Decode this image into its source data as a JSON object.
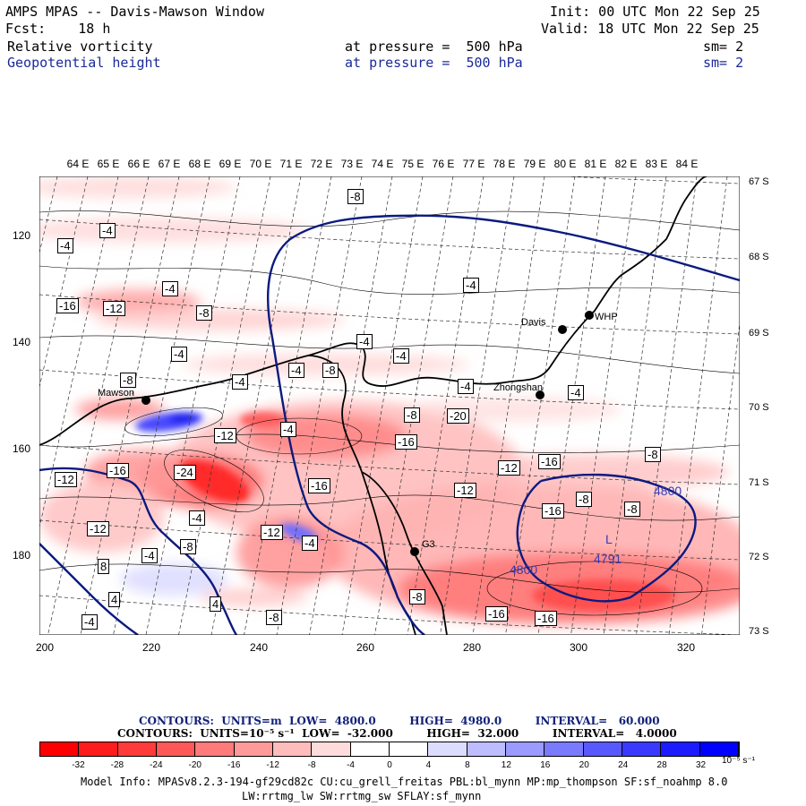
{
  "header": {
    "title": "AMPS MPAS -- Davis-Mawson Window",
    "forecast": "Fcst:    18 h",
    "init": "Init: 00 UTC Mon 22 Sep 25",
    "valid": "Valid: 18 UTC Mon 22 Sep 25",
    "field1": {
      "name": "Relative vorticity",
      "level": "at pressure =  500 hPa",
      "smooth": "sm= 2"
    },
    "field2": {
      "name": "Geopotential height",
      "level": "at pressure =  500 hPa",
      "smooth": "sm= 2"
    }
  },
  "map": {
    "lon_labels": [
      "64 E",
      "65 E",
      "66 E",
      "67 E",
      "68 E",
      "69 E",
      "70 E",
      "71 E",
      "72 E",
      "73 E",
      "74 E",
      "75 E",
      "76 E",
      "77 E",
      "78 E",
      "79 E",
      "80 E",
      "81 E",
      "82 E",
      "83 E",
      "84 E"
    ],
    "lat_labels": [
      "67 S",
      "68 S",
      "69 S",
      "70 S",
      "71 S",
      "72 S",
      "73 S"
    ],
    "x_ticks": [
      "200",
      "220",
      "240",
      "260",
      "280",
      "300",
      "320"
    ],
    "y_ticks": [
      "120",
      "140",
      "160",
      "180"
    ],
    "stations": [
      "Davis",
      "WHP",
      "Mawson",
      "Zhongshan",
      "G3"
    ],
    "contour_labels": [
      "-8",
      "-4",
      "-4",
      "-4",
      "-16",
      "-12",
      "-4",
      "-8",
      "-4",
      "-4",
      "-4",
      "-4",
      "-8",
      "-8",
      "-4",
      "-4",
      "-4",
      "-20",
      "-8",
      "-4",
      "-16",
      "-12",
      "-24",
      "-16",
      "-12",
      "-16",
      "-12",
      "-16",
      "-8",
      "-12",
      "-8",
      "-4",
      "-12",
      "-8",
      "-4",
      "8",
      "-12",
      "-16",
      "4",
      "-8",
      "4",
      "-8",
      "-16",
      "-16",
      "-4",
      "-8",
      "-4"
    ],
    "height_labels": [
      "4800",
      "4800",
      "4791"
    ],
    "low_marker": "L",
    "colors": {
      "coast": "#000000",
      "height_contour": "#0a1a80",
      "neg_max": "#ff0000",
      "pos_max": "#0000ff"
    }
  },
  "contour_info": {
    "line1": "CONTOURS:  UNITS=m  LOW=  4800.0         HIGH=  4980.0         INTERVAL=   60.000",
    "line2": "CONTOURS:  UNITS=10⁻⁵ s⁻¹  LOW=  -32.000         HIGH=  32.000         INTERVAL=   4.0000"
  },
  "colorbar": {
    "colors": [
      "#ff0000",
      "#ff1c1c",
      "#ff3a3a",
      "#ff5858",
      "#ff7a7a",
      "#ff9a9a",
      "#ffbcbc",
      "#ffdcdc",
      "#ffffff",
      "#ffffff",
      "#dcdcff",
      "#bcbcff",
      "#9a9aff",
      "#7a7aff",
      "#5858ff",
      "#3a3aff",
      "#1c1cff",
      "#0000ff"
    ],
    "ticks": [
      "-32",
      "-28",
      "-24",
      "-20",
      "-16",
      "-12",
      "-8",
      "-4",
      "0",
      "4",
      "8",
      "12",
      "16",
      "20",
      "24",
      "28",
      "32"
    ],
    "units": "10⁻⁵ s⁻¹"
  },
  "footer": {
    "line1": "Model Info: MPASv8.2.3-194-gf29cd82c CU:cu_grell_freitas PBL:bl_mynn MP:mp_thompson SF:sf_noahmp 8.0",
    "line2": "LW:rrtmg_lw SW:rrtmg_sw SFLAY:sf_mynn"
  }
}
